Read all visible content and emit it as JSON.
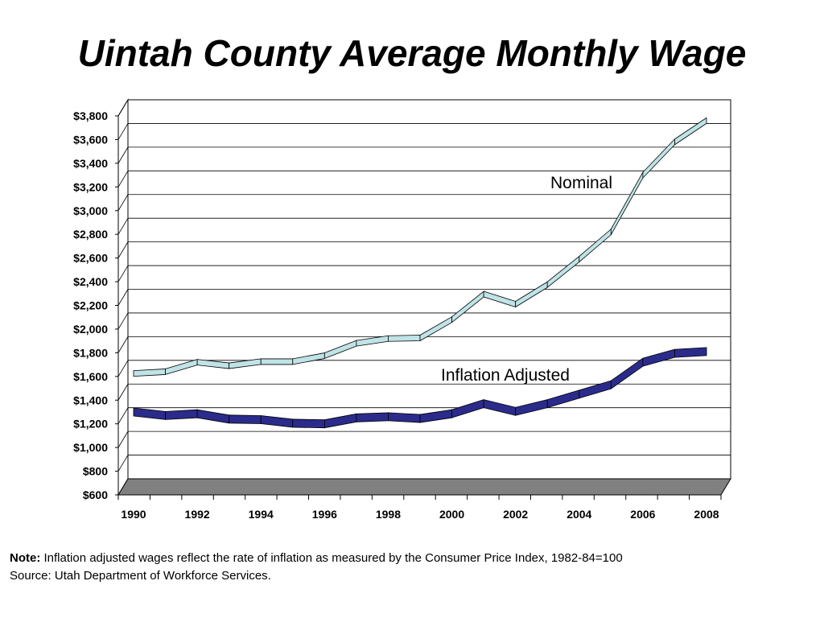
{
  "title": "Uintah County Average Monthly Wage",
  "chart_data": {
    "type": "line",
    "title": "Uintah County Average Monthly Wage",
    "ylim": [
      600,
      3800
    ],
    "y_ticks": [
      "$600",
      "$800",
      "$1,000",
      "$1,200",
      "$1,400",
      "$1,600",
      "$1,800",
      "$2,000",
      "$2,200",
      "$2,400",
      "$2,600",
      "$2,800",
      "$3,000",
      "$3,200",
      "$3,400",
      "$3,600",
      "$3,800"
    ],
    "x_ticks": [
      "1990",
      "1992",
      "1994",
      "1996",
      "1998",
      "2000",
      "2002",
      "2004",
      "2006",
      "2008"
    ],
    "x": [
      1990,
      1991,
      1992,
      1993,
      1994,
      1995,
      1996,
      1997,
      1998,
      1999,
      2000,
      2001,
      2002,
      2003,
      2004,
      2005,
      2006,
      2007,
      2008
    ],
    "grid": true,
    "three_d": true,
    "series": [
      {
        "name": "Nominal",
        "color": "#bfe3e6",
        "values": [
          1625,
          1640,
          1720,
          1690,
          1725,
          1725,
          1775,
          1880,
          1920,
          1925,
          2080,
          2295,
          2210,
          2375,
          2590,
          2820,
          3300,
          3580,
          3760
        ]
      },
      {
        "name": "Inflation Adjusted",
        "color": "#2b2b8c",
        "values": [
          1300,
          1270,
          1285,
          1240,
          1235,
          1205,
          1200,
          1250,
          1260,
          1245,
          1285,
          1370,
          1305,
          1370,
          1450,
          1530,
          1720,
          1795,
          1810
        ]
      }
    ]
  },
  "annotations": {
    "nominal": "Nominal",
    "inflation": "Inflation Adjusted"
  },
  "note": {
    "label": "Note:",
    "text": " Inflation adjusted wages reflect the rate of inflation as measured by the Consumer Price Index, 1982-84=100",
    "source": "Source: Utah Department of Workforce Services."
  }
}
